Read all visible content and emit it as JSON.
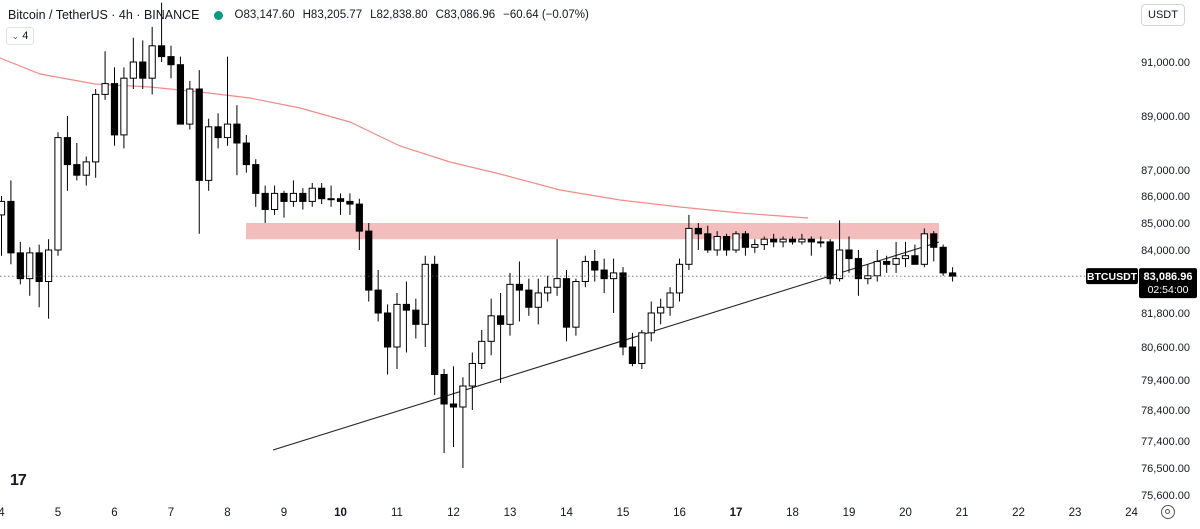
{
  "header": {
    "symbol": "Bitcoin / TetherUS · 4h · BINANCE",
    "open": "O83,147.60",
    "high": "H83,205.77",
    "low": "L82,838.80",
    "close": "C83,086.96",
    "change": "−60.64 (−0.07%)",
    "indicator_count": "4",
    "currency": "USDT",
    "status_color": "#089981"
  },
  "price_label": {
    "ticker": "BTCUSDT",
    "price": "83,086.96",
    "countdown": "02:54:00"
  },
  "logo": "17",
  "icons": [
    "chevron-down-icon",
    "settings-icon",
    "tradingview-logo"
  ],
  "colors": {
    "up": "#ffffff",
    "down": "#000000",
    "wick": "#000000",
    "ma": "#f28b8b",
    "zone": "#f4bdbd",
    "trendline": "#222222"
  },
  "chart_data": {
    "type": "candlestick",
    "timeframe": "4h",
    "y_ticks": [
      {
        "value": 91000,
        "label": "91,000.00"
      },
      {
        "value": 89000,
        "label": "89,000.00"
      },
      {
        "value": 87000,
        "label": "87,000.00"
      },
      {
        "value": 86000,
        "label": "86,000.00"
      },
      {
        "value": 85000,
        "label": "85,000.00"
      },
      {
        "value": 84000,
        "label": "84,000.00"
      },
      {
        "value": 81800,
        "label": "81,800.00"
      },
      {
        "value": 80600,
        "label": "80,600.00"
      },
      {
        "value": 79400,
        "label": "79,400.00"
      },
      {
        "value": 78400,
        "label": "78,400.00"
      },
      {
        "value": 77400,
        "label": "77,400.00"
      },
      {
        "value": 76500,
        "label": "76,500.00"
      },
      {
        "value": 75600,
        "label": "75,600.00"
      }
    ],
    "x_ticks": [
      {
        "t": 0,
        "label": "4",
        "bold": false
      },
      {
        "t": 6,
        "label": "5",
        "bold": false
      },
      {
        "t": 12,
        "label": "6",
        "bold": false
      },
      {
        "t": 18,
        "label": "7",
        "bold": false
      },
      {
        "t": 24,
        "label": "8",
        "bold": false
      },
      {
        "t": 30,
        "label": "9",
        "bold": false
      },
      {
        "t": 36,
        "label": "10",
        "bold": true
      },
      {
        "t": 42,
        "label": "11",
        "bold": false
      },
      {
        "t": 48,
        "label": "12",
        "bold": false
      },
      {
        "t": 54,
        "label": "13",
        "bold": false
      },
      {
        "t": 60,
        "label": "14",
        "bold": false
      },
      {
        "t": 66,
        "label": "15",
        "bold": false
      },
      {
        "t": 72,
        "label": "16",
        "bold": false
      },
      {
        "t": 78,
        "label": "17",
        "bold": true
      },
      {
        "t": 84,
        "label": "18",
        "bold": false
      },
      {
        "t": 90,
        "label": "19",
        "bold": false
      },
      {
        "t": 96,
        "label": "20",
        "bold": false
      },
      {
        "t": 102,
        "label": "21",
        "bold": false
      },
      {
        "t": 108,
        "label": "22",
        "bold": false
      },
      {
        "t": 114,
        "label": "23",
        "bold": false
      },
      {
        "t": 120,
        "label": "24",
        "bold": false
      }
    ],
    "candles": [
      [
        85300,
        86000,
        83800,
        85800
      ],
      [
        85800,
        86600,
        83500,
        83900
      ],
      [
        83900,
        84300,
        82800,
        83000
      ],
      [
        83000,
        84100,
        82400,
        83900
      ],
      [
        83900,
        84200,
        82000,
        82900
      ],
      [
        82900,
        84400,
        81600,
        84000
      ],
      [
        84000,
        88400,
        83800,
        88200
      ],
      [
        88200,
        89000,
        86200,
        87200
      ],
      [
        87200,
        88000,
        86600,
        86800
      ],
      [
        86800,
        87500,
        86400,
        87300
      ],
      [
        87300,
        90000,
        86700,
        89800
      ],
      [
        89800,
        91400,
        89600,
        90200
      ],
      [
        90200,
        90800,
        87900,
        88300
      ],
      [
        88300,
        90800,
        87800,
        90400
      ],
      [
        90400,
        91900,
        90000,
        91000
      ],
      [
        91000,
        91800,
        90000,
        90400
      ],
      [
        90400,
        92300,
        89800,
        91600
      ],
      [
        91600,
        93200,
        91000,
        91200
      ],
      [
        91200,
        91600,
        90400,
        90900
      ],
      [
        90900,
        91200,
        88700,
        88700
      ],
      [
        88700,
        90300,
        88500,
        90000
      ],
      [
        90000,
        90700,
        84600,
        86600
      ],
      [
        86600,
        88900,
        86200,
        88600
      ],
      [
        88600,
        89100,
        87800,
        88200
      ],
      [
        88200,
        91200,
        87900,
        88700
      ],
      [
        88700,
        89400,
        86800,
        88000
      ],
      [
        88000,
        88300,
        86900,
        87200
      ],
      [
        87200,
        87400,
        85600,
        86100
      ],
      [
        86100,
        86400,
        85000,
        85500
      ],
      [
        85500,
        86400,
        85300,
        86100
      ],
      [
        86100,
        86200,
        85200,
        85800
      ],
      [
        85800,
        86600,
        85600,
        86100
      ],
      [
        86100,
        86300,
        85500,
        85800
      ],
      [
        85800,
        86500,
        85600,
        86300
      ],
      [
        86300,
        86500,
        85700,
        85900
      ],
      [
        85900,
        86400,
        85600,
        85900
      ],
      [
        85900,
        86100,
        85300,
        85800
      ],
      [
        85800,
        86100,
        85300,
        85700
      ],
      [
        85700,
        85900,
        84000,
        84700
      ],
      [
        84700,
        85000,
        82200,
        82600
      ],
      [
        82600,
        83300,
        81500,
        81800
      ],
      [
        81800,
        82100,
        79600,
        80600
      ],
      [
        80600,
        82500,
        79800,
        82100
      ],
      [
        82100,
        82900,
        80400,
        81900
      ],
      [
        81900,
        82300,
        80900,
        81400
      ],
      [
        81400,
        83800,
        80600,
        83500
      ],
      [
        83500,
        83800,
        78900,
        79600
      ],
      [
        79600,
        79800,
        77000,
        78600
      ],
      [
        78600,
        79900,
        77200,
        78500
      ],
      [
        78500,
        79500,
        76500,
        79200
      ],
      [
        79200,
        80400,
        78400,
        80000
      ],
      [
        80000,
        81200,
        79800,
        80800
      ],
      [
        80800,
        82300,
        80300,
        81700
      ],
      [
        81700,
        82500,
        79300,
        81400
      ],
      [
        81400,
        83200,
        81000,
        82800
      ],
      [
        82800,
        83600,
        81500,
        82600
      ],
      [
        82600,
        83000,
        81700,
        82000
      ],
      [
        82000,
        83000,
        81400,
        82500
      ],
      [
        82500,
        83100,
        82200,
        82700
      ],
      [
        82700,
        84400,
        82400,
        83000
      ],
      [
        83000,
        83300,
        80800,
        81300
      ],
      [
        81300,
        83000,
        81000,
        82900
      ],
      [
        82900,
        83800,
        82700,
        83600
      ],
      [
        83600,
        84000,
        82900,
        83300
      ],
      [
        83300,
        83700,
        82500,
        83000
      ],
      [
        83000,
        83700,
        81800,
        83200
      ],
      [
        83200,
        83400,
        80300,
        80600
      ],
      [
        80600,
        81100,
        79900,
        80000
      ],
      [
        80000,
        81200,
        79800,
        81100
      ],
      [
        81100,
        82200,
        80800,
        81800
      ],
      [
        81800,
        82300,
        81400,
        82000
      ],
      [
        82000,
        82700,
        81700,
        82500
      ],
      [
        82500,
        83700,
        82200,
        83500
      ],
      [
        83500,
        85300,
        83300,
        84800
      ],
      [
        84800,
        85000,
        84000,
        84600
      ],
      [
        84600,
        84900,
        83900,
        84000
      ],
      [
        84000,
        84700,
        83800,
        84500
      ],
      [
        84500,
        84600,
        83800,
        84000
      ],
      [
        84000,
        84700,
        83900,
        84600
      ],
      [
        84600,
        84700,
        83800,
        84100
      ],
      [
        84100,
        84400,
        83900,
        84200
      ],
      [
        84200,
        84500,
        84000,
        84400
      ],
      [
        84400,
        84600,
        84100,
        84300
      ],
      [
        84300,
        84500,
        84100,
        84400
      ],
      [
        84400,
        84500,
        84200,
        84300
      ],
      [
        84300,
        84600,
        84200,
        84400
      ],
      [
        84400,
        84500,
        83800,
        84300
      ],
      [
        84300,
        84500,
        84100,
        84300
      ],
      [
        84300,
        84400,
        82800,
        83000
      ],
      [
        83000,
        85100,
        82900,
        84000
      ],
      [
        84000,
        84500,
        83200,
        83700
      ],
      [
        83700,
        84000,
        82400,
        83000
      ],
      [
        83000,
        83500,
        82800,
        83100
      ],
      [
        83100,
        84000,
        82900,
        83600
      ],
      [
        83600,
        83800,
        83200,
        83500
      ],
      [
        83500,
        84300,
        83200,
        83700
      ],
      [
        83700,
        84300,
        83400,
        83800
      ],
      [
        83800,
        84200,
        83500,
        83500
      ],
      [
        83500,
        84800,
        83400,
        84600
      ],
      [
        84600,
        84700,
        83600,
        84100
      ],
      [
        84100,
        84200,
        83100,
        83200
      ],
      [
        83200,
        83400,
        82900,
        83087
      ]
    ],
    "ma": {
      "name": "",
      "points": [
        [
          -3,
          91500
        ],
        [
          10,
          90700
        ],
        [
          20,
          90300
        ],
        [
          30,
          89800
        ],
        [
          40,
          89300
        ],
        [
          50,
          88400
        ],
        [
          60,
          87400
        ],
        [
          70,
          86600
        ],
        [
          80,
          86000
        ],
        [
          90,
          85600
        ],
        [
          100,
          85400
        ],
        [
          110,
          85300
        ]
      ]
    },
    "resistance_zone": {
      "t_start": 40,
      "t_end": 164,
      "low": 84400,
      "high": 85000
    },
    "trendline": {
      "t1": 46,
      "p1": 77700,
      "t2": 164,
      "p2": 84100
    },
    "current_price": 83086.96
  }
}
